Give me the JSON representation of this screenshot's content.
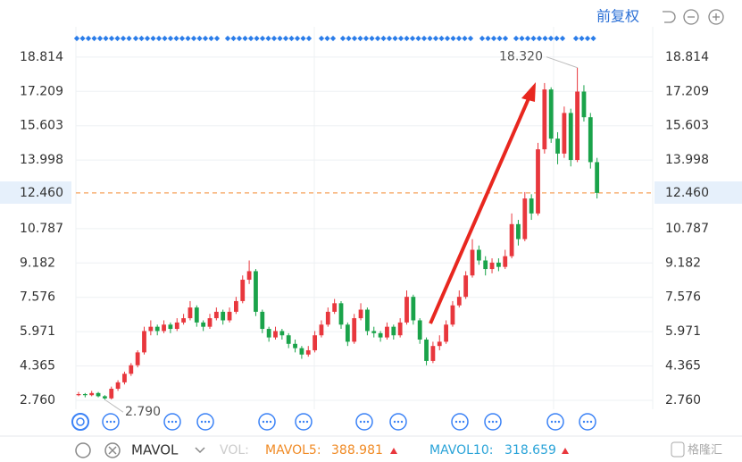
{
  "chart_data": {
    "type": "candlestick",
    "adjust": "前复权",
    "ylim": [
      2.34,
      20.23
    ],
    "yticks": [
      18.814,
      17.209,
      15.603,
      13.998,
      10.787,
      9.182,
      7.576,
      5.971,
      4.365,
      {
        "value": 2.76,
        "label": "2.760"
      }
    ],
    "last_price": {
      "value": 12.46,
      "label": "12.460"
    },
    "up_color": "#e8373d",
    "down_color": "#1aa34a",
    "candles": [
      [
        3.0,
        3.15,
        2.95,
        3.05
      ],
      [
        3.05,
        3.1,
        2.9,
        3.0
      ],
      [
        3.0,
        3.2,
        2.95,
        3.1
      ],
      [
        3.1,
        3.15,
        2.9,
        2.95
      ],
      [
        2.95,
        3.0,
        2.79,
        2.85
      ],
      [
        2.85,
        3.4,
        2.8,
        3.3
      ],
      [
        3.3,
        3.7,
        3.2,
        3.6
      ],
      [
        3.6,
        4.1,
        3.5,
        4.0
      ],
      [
        4.0,
        4.5,
        3.9,
        4.4
      ],
      [
        4.4,
        5.1,
        4.3,
        5.0
      ],
      [
        5.0,
        6.2,
        4.9,
        6.0
      ],
      [
        6.0,
        6.5,
        5.8,
        6.2
      ],
      [
        6.2,
        6.3,
        5.8,
        6.0
      ],
      [
        6.0,
        6.5,
        5.9,
        6.3
      ],
      [
        6.3,
        6.4,
        5.9,
        6.1
      ],
      [
        6.1,
        6.6,
        6.0,
        6.4
      ],
      [
        6.4,
        6.8,
        6.3,
        6.6
      ],
      [
        6.6,
        7.4,
        6.5,
        7.1
      ],
      [
        7.1,
        7.2,
        6.2,
        6.4
      ],
      [
        6.4,
        6.5,
        6.0,
        6.2
      ],
      [
        6.2,
        6.8,
        6.1,
        6.6
      ],
      [
        6.6,
        7.1,
        6.5,
        6.9
      ],
      [
        6.9,
        7.0,
        6.3,
        6.5
      ],
      [
        6.5,
        7.1,
        6.4,
        6.9
      ],
      [
        6.9,
        7.6,
        6.8,
        7.4
      ],
      [
        7.4,
        8.6,
        7.3,
        8.4
      ],
      [
        8.4,
        9.3,
        8.2,
        8.8
      ],
      [
        8.8,
        8.9,
        6.7,
        6.9
      ],
      [
        6.9,
        7.0,
        5.9,
        6.1
      ],
      [
        6.1,
        6.2,
        5.5,
        5.7
      ],
      [
        5.7,
        6.2,
        5.6,
        6.0
      ],
      [
        6.0,
        6.1,
        5.6,
        5.8
      ],
      [
        5.8,
        5.9,
        5.2,
        5.4
      ],
      [
        5.4,
        5.6,
        5.0,
        5.2
      ],
      [
        5.2,
        5.3,
        4.7,
        4.9
      ],
      [
        4.9,
        5.3,
        4.8,
        5.1
      ],
      [
        5.1,
        6.0,
        5.0,
        5.8
      ],
      [
        5.8,
        6.5,
        5.7,
        6.3
      ],
      [
        6.3,
        7.1,
        6.2,
        6.9
      ],
      [
        6.9,
        7.5,
        6.8,
        7.3
      ],
      [
        7.3,
        7.4,
        6.1,
        6.3
      ],
      [
        6.3,
        6.4,
        5.3,
        5.5
      ],
      [
        5.5,
        6.8,
        5.4,
        6.6
      ],
      [
        6.6,
        7.3,
        6.5,
        7.0
      ],
      [
        7.0,
        7.1,
        5.8,
        6.0
      ],
      [
        6.0,
        6.2,
        5.7,
        5.9
      ],
      [
        5.9,
        6.0,
        5.5,
        5.7
      ],
      [
        5.7,
        6.4,
        5.6,
        6.2
      ],
      [
        6.2,
        6.3,
        5.6,
        5.8
      ],
      [
        5.8,
        6.6,
        5.7,
        6.4
      ],
      [
        6.4,
        7.9,
        6.3,
        7.6
      ],
      [
        7.6,
        7.7,
        6.3,
        6.5
      ],
      [
        6.5,
        6.6,
        5.4,
        5.6
      ],
      [
        5.6,
        5.7,
        4.4,
        4.6
      ],
      [
        4.6,
        5.5,
        4.5,
        5.3
      ],
      [
        5.3,
        5.8,
        5.1,
        5.5
      ],
      [
        5.5,
        6.5,
        5.4,
        6.3
      ],
      [
        6.3,
        7.4,
        6.2,
        7.2
      ],
      [
        7.2,
        7.9,
        7.1,
        7.6
      ],
      [
        7.6,
        8.8,
        7.5,
        8.6
      ],
      [
        8.6,
        10.3,
        8.5,
        9.8
      ],
      [
        9.8,
        10.0,
        9.1,
        9.3
      ],
      [
        9.3,
        9.5,
        8.6,
        8.9
      ],
      [
        8.9,
        9.4,
        8.7,
        9.2
      ],
      [
        9.2,
        9.4,
        8.8,
        9.0
      ],
      [
        9.0,
        9.8,
        8.9,
        9.5
      ],
      [
        9.5,
        11.5,
        9.4,
        11.0
      ],
      [
        11.0,
        11.2,
        10.0,
        10.3
      ],
      [
        10.3,
        12.5,
        10.2,
        12.2
      ],
      [
        12.2,
        12.4,
        11.2,
        11.5
      ],
      [
        11.5,
        14.8,
        11.4,
        14.5
      ],
      [
        14.5,
        17.6,
        14.3,
        17.3
      ],
      [
        17.3,
        17.4,
        14.8,
        15.0
      ],
      [
        15.0,
        15.3,
        13.8,
        14.3
      ],
      [
        14.3,
        16.5,
        14.1,
        16.2
      ],
      [
        16.2,
        16.4,
        13.7,
        14.0
      ],
      [
        14.0,
        18.32,
        13.9,
        17.2
      ],
      [
        17.2,
        17.5,
        15.8,
        16.0
      ],
      [
        16.0,
        16.2,
        13.6,
        13.9
      ],
      [
        13.9,
        14.1,
        12.2,
        12.46
      ]
    ],
    "max_label": {
      "value": 18.32,
      "label": "18.320"
    },
    "min_label": {
      "value": 2.79,
      "label": "2.790"
    },
    "indicator": {
      "name": "MAVOL",
      "vol": "VOL:",
      "mavol5_name": "MAVOL5:",
      "mavol5": "388.981",
      "mavol10_name": "MAVOL10:",
      "mavol10": "318.659"
    },
    "watermark": "格隆汇"
  }
}
